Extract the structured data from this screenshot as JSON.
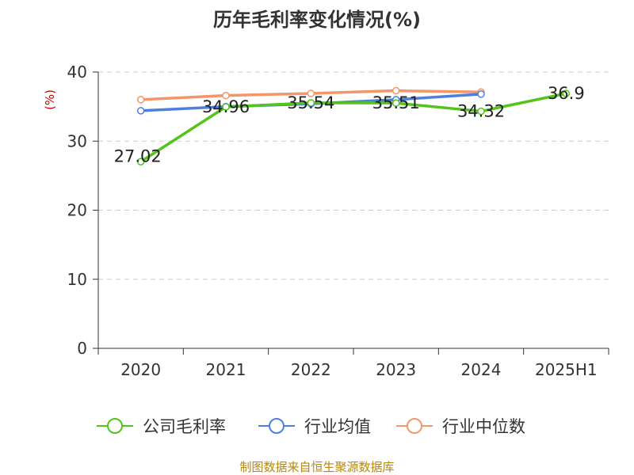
{
  "chart_data": {
    "type": "line",
    "title": "历年毛利率变化情况(%)",
    "ylabel": "(%)",
    "ylim": [
      0,
      40
    ],
    "yticks": [
      0,
      10,
      20,
      30,
      40
    ],
    "categories": [
      "2020",
      "2021",
      "2022",
      "2023",
      "2024",
      "2025H1"
    ],
    "grid": true,
    "legend_position": "bottom",
    "series": [
      {
        "name": "公司毛利率",
        "color": "#52c41a",
        "values": [
          27.02,
          34.96,
          35.54,
          35.51,
          34.32,
          36.9
        ],
        "labels": [
          "27.02",
          "34.96",
          "35.54",
          "35.51",
          "34.32",
          "36.9"
        ]
      },
      {
        "name": "行业均值",
        "color": "#4f7fdc",
        "values": [
          34.4,
          35.0,
          35.4,
          36.0,
          36.8,
          null
        ]
      },
      {
        "name": "行业中位数",
        "color": "#f5956a",
        "values": [
          36.0,
          36.6,
          36.9,
          37.3,
          37.1,
          null
        ]
      }
    ]
  },
  "source": "制图数据来自恒生聚源数据库"
}
